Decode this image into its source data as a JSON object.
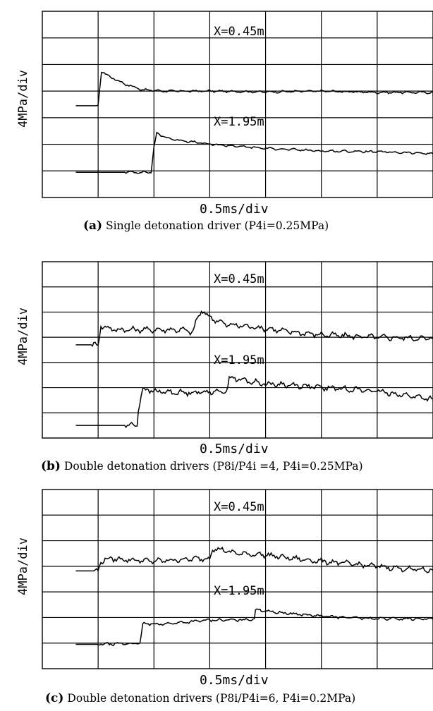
{
  "chart_data": [
    {
      "type": "line",
      "panel": "a",
      "ylabel": "4MPa/div",
      "xlabel": "0.5ms/div",
      "caption_letter": "(a)",
      "caption_text": "Single detonation driver (P4i=0.25MPa)",
      "grid": true,
      "x_divs": 7,
      "y_divs": 7,
      "series": [
        {
          "annotation": "X=0.45m",
          "x": [
            0.6,
            1.0,
            1.03,
            1.06,
            1.2,
            1.5,
            1.8,
            2.2,
            3,
            4,
            5,
            6,
            7
          ],
          "y": [
            3.45,
            3.45,
            4.1,
            4.75,
            4.55,
            4.25,
            4.05,
            4.0,
            4.0,
            3.97,
            4.0,
            3.95,
            3.95
          ],
          "noise": 0.05
        },
        {
          "annotation": "X=1.95m",
          "x": [
            0.6,
            1.5,
            1.95,
            2.0,
            2.05,
            2.3,
            3,
            4,
            5,
            6,
            7
          ],
          "y": [
            0.95,
            0.95,
            0.95,
            1.9,
            2.4,
            2.2,
            2.0,
            1.85,
            1.75,
            1.72,
            1.65
          ],
          "noise": 0.05
        }
      ]
    },
    {
      "type": "line",
      "panel": "b",
      "ylabel": "4MPa/div",
      "xlabel": "0.5ms/div",
      "caption_letter": "(b)",
      "caption_text": "Double detonation drivers (P8i/P4i =4, P4i=0.25MPa)",
      "grid": true,
      "x_divs": 7,
      "y_divs": 7,
      "series": [
        {
          "annotation": "X=0.45m",
          "x": [
            0.6,
            0.9,
            0.92,
            1.0,
            1.05,
            1.3,
            1.8,
            2.5,
            2.7,
            2.75,
            2.85,
            3.0,
            3.3,
            3.6,
            4,
            4.5,
            5,
            6,
            7
          ],
          "y": [
            3.7,
            3.7,
            3.7,
            3.7,
            4.45,
            4.3,
            4.3,
            4.3,
            4.2,
            4.6,
            5.05,
            4.8,
            4.5,
            4.45,
            4.35,
            4.2,
            4.1,
            4.0,
            3.95
          ],
          "noise": 0.14
        },
        {
          "annotation": "X=1.95m",
          "x": [
            0.6,
            1.5,
            1.65,
            1.7,
            1.72,
            1.8,
            2.0,
            2.5,
            3.2,
            3.3,
            3.35,
            3.7,
            4.0,
            4.5,
            5,
            5.5,
            6,
            6.5,
            7
          ],
          "y": [
            0.5,
            0.5,
            0.5,
            0.6,
            1.1,
            1.95,
            1.85,
            1.8,
            1.85,
            1.85,
            2.4,
            2.25,
            2.15,
            2.1,
            2.0,
            1.95,
            1.85,
            1.7,
            1.55
          ],
          "noise": 0.14
        }
      ]
    },
    {
      "type": "line",
      "panel": "c",
      "ylabel": "4MPa/div",
      "xlabel": "0.5ms/div",
      "caption_letter": "(c)",
      "caption_text": "Double detonation drivers (P8i/P4i=6, P4i=0.2MPa)",
      "grid": true,
      "x_divs": 7,
      "y_divs": 7,
      "series": [
        {
          "annotation": "X=0.45m",
          "x": [
            0.6,
            0.95,
            1.0,
            1.05,
            1.2,
            2.0,
            2.8,
            3.0,
            3.05,
            3.2,
            3.5,
            4,
            4.5,
            5.0,
            5.5,
            6,
            6.5,
            7
          ],
          "y": [
            3.82,
            3.82,
            3.82,
            4.2,
            4.3,
            4.2,
            4.3,
            4.3,
            4.7,
            4.65,
            4.5,
            4.45,
            4.3,
            4.2,
            4.1,
            4.0,
            3.9,
            3.85
          ],
          "noise": 0.13
        },
        {
          "annotation": "X=1.95m",
          "x": [
            0.6,
            1.0,
            1.5,
            1.75,
            1.8,
            1.85,
            2.2,
            3.0,
            3.6,
            3.8,
            3.82,
            3.9,
            4.2,
            5,
            6,
            7
          ],
          "y": [
            0.95,
            0.95,
            0.98,
            0.98,
            1.75,
            1.75,
            1.75,
            1.9,
            1.9,
            1.95,
            2.3,
            2.3,
            2.2,
            2.05,
            1.95,
            1.95
          ],
          "noise": 0.07
        }
      ]
    }
  ]
}
